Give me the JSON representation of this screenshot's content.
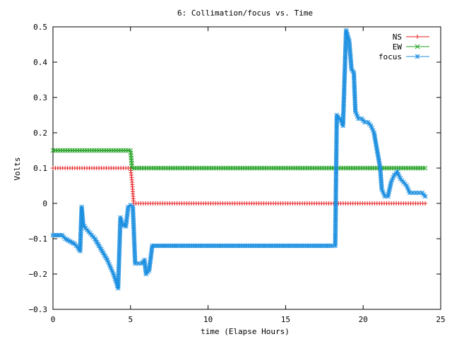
{
  "chart_data": {
    "type": "line",
    "title": "6: Collimation/focus vs. Time",
    "xlabel": "time (Elapse Hours)",
    "ylabel": "Volts",
    "xlim": [
      0,
      25
    ],
    "ylim": [
      -0.3,
      0.5
    ],
    "x_ticks": [
      "0",
      "5",
      "10",
      "15",
      "20",
      "25"
    ],
    "y_ticks": [
      "−0.3",
      "−0.2",
      "−0.1",
      "0",
      "0.1",
      "0.2",
      "0.3",
      "0.4",
      "0.5"
    ],
    "grid": false,
    "legend": "top-right",
    "series": [
      {
        "name": "NS",
        "color": "#e8191c",
        "marker": "plus",
        "points": [
          [
            0.0,
            0.1
          ],
          [
            5.0,
            0.1
          ],
          [
            5.1,
            0.06
          ],
          [
            5.2,
            0.0
          ],
          [
            24.0,
            0.0
          ]
        ]
      },
      {
        "name": "EW",
        "color": "#21a121",
        "marker": "cross",
        "points": [
          [
            0.0,
            0.15
          ],
          [
            5.0,
            0.15
          ],
          [
            5.1,
            0.1
          ],
          [
            24.0,
            0.1
          ]
        ]
      },
      {
        "name": "focus",
        "color": "#1c8fe0",
        "marker": "star",
        "points": [
          [
            0.0,
            -0.09
          ],
          [
            0.3,
            -0.09
          ],
          [
            0.6,
            -0.09
          ],
          [
            0.8,
            -0.1
          ],
          [
            1.0,
            -0.105
          ],
          [
            1.2,
            -0.11
          ],
          [
            1.4,
            -0.115
          ],
          [
            1.6,
            -0.125
          ],
          [
            1.75,
            -0.135
          ],
          [
            1.85,
            -0.01
          ],
          [
            1.95,
            -0.06
          ],
          [
            2.1,
            -0.07
          ],
          [
            2.3,
            -0.08
          ],
          [
            2.5,
            -0.09
          ],
          [
            2.7,
            -0.1
          ],
          [
            2.9,
            -0.115
          ],
          [
            3.1,
            -0.13
          ],
          [
            3.3,
            -0.145
          ],
          [
            3.5,
            -0.16
          ],
          [
            3.7,
            -0.18
          ],
          [
            3.9,
            -0.2
          ],
          [
            4.05,
            -0.22
          ],
          [
            4.2,
            -0.24
          ],
          [
            4.35,
            -0.04
          ],
          [
            4.5,
            -0.06
          ],
          [
            4.7,
            -0.065
          ],
          [
            4.85,
            -0.01
          ],
          [
            5.0,
            -0.005
          ],
          [
            5.15,
            -0.01
          ],
          [
            5.3,
            -0.17
          ],
          [
            5.5,
            -0.17
          ],
          [
            5.7,
            -0.17
          ],
          [
            5.9,
            -0.16
          ],
          [
            6.0,
            -0.2
          ],
          [
            6.2,
            -0.19
          ],
          [
            6.4,
            -0.12
          ],
          [
            8.0,
            -0.12
          ],
          [
            10.0,
            -0.12
          ],
          [
            12.0,
            -0.12
          ],
          [
            14.0,
            -0.12
          ],
          [
            16.0,
            -0.12
          ],
          [
            18.0,
            -0.12
          ],
          [
            18.2,
            -0.12
          ],
          [
            18.3,
            0.25
          ],
          [
            18.5,
            0.24
          ],
          [
            18.7,
            0.22
          ],
          [
            18.9,
            0.49
          ],
          [
            19.1,
            0.46
          ],
          [
            19.25,
            0.38
          ],
          [
            19.4,
            0.37
          ],
          [
            19.5,
            0.26
          ],
          [
            19.7,
            0.24
          ],
          [
            19.9,
            0.24
          ],
          [
            20.1,
            0.23
          ],
          [
            20.3,
            0.23
          ],
          [
            20.5,
            0.22
          ],
          [
            20.7,
            0.2
          ],
          [
            20.9,
            0.15
          ],
          [
            21.1,
            0.1
          ],
          [
            21.2,
            0.04
          ],
          [
            21.4,
            0.02
          ],
          [
            21.6,
            0.02
          ],
          [
            21.8,
            0.06
          ],
          [
            22.0,
            0.08
          ],
          [
            22.2,
            0.09
          ],
          [
            22.4,
            0.07
          ],
          [
            22.6,
            0.06
          ],
          [
            22.8,
            0.05
          ],
          [
            23.0,
            0.03
          ],
          [
            23.2,
            0.03
          ],
          [
            23.4,
            0.03
          ],
          [
            23.6,
            0.03
          ],
          [
            23.8,
            0.03
          ],
          [
            24.0,
            0.02
          ]
        ]
      }
    ]
  }
}
